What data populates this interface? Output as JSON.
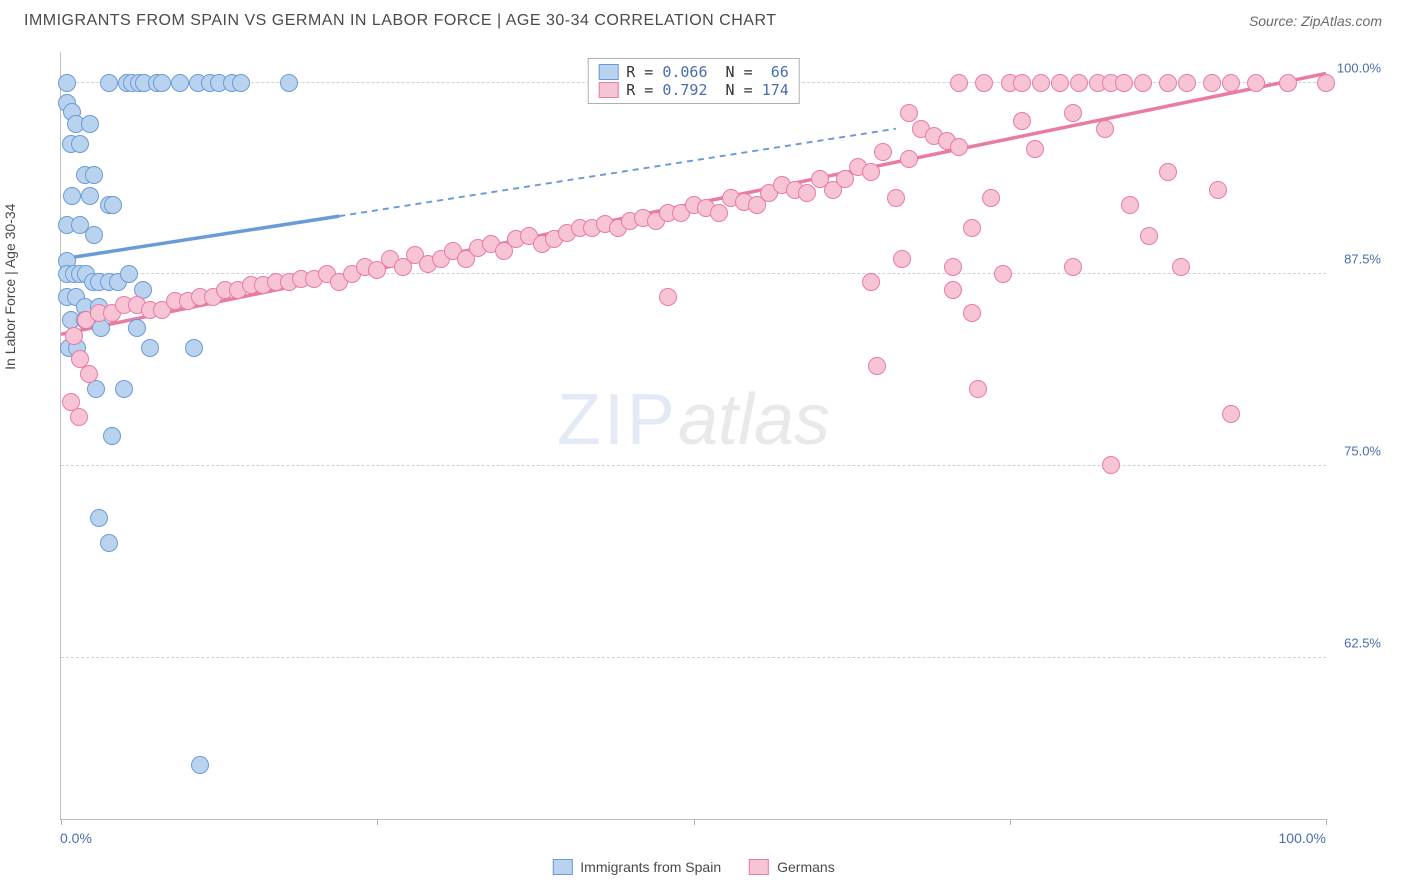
{
  "header": {
    "title": "IMMIGRANTS FROM SPAIN VS GERMAN IN LABOR FORCE | AGE 30-34 CORRELATION CHART",
    "source": "Source: ZipAtlas.com"
  },
  "chart": {
    "type": "scatter",
    "ylabel": "In Labor Force | Age 30-34",
    "watermark_zip": "ZIP",
    "watermark_atlas": "atlas",
    "background_color": "#ffffff",
    "grid_color": "#d0d0d0",
    "axis_color": "#c0c0c0",
    "tick_label_color": "#4a6db0",
    "xlim": [
      0,
      100
    ],
    "ylim": [
      52,
      102
    ],
    "yticks": [
      62.5,
      75.0,
      87.5,
      100.0
    ],
    "ytick_labels": [
      "62.5%",
      "75.0%",
      "87.5%",
      "100.0%"
    ],
    "xtick_positions": [
      0,
      25,
      50,
      75,
      100
    ],
    "xaxis_left_label": "0.0%",
    "xaxis_right_label": "100.0%",
    "marker_radius": 9,
    "marker_fill_opacity": 0.35,
    "marker_stroke_width": 1.5,
    "series": [
      {
        "name": "Immigrants from Spain",
        "label": "Immigrants from Spain",
        "color": "#6a9bd8",
        "fill": "#b9d3ef",
        "R": "0.066",
        "N": "66",
        "trend": {
          "x1": 0,
          "y1": 88.5,
          "x2": 22,
          "y2": 91.3,
          "dash_x2": 66,
          "dash_y2": 97.0,
          "width": 3.5,
          "dash_pattern": "6 5"
        },
        "points": [
          [
            0.5,
            100.0
          ],
          [
            3.8,
            100.0
          ],
          [
            5.2,
            100.0
          ],
          [
            5.6,
            100.0
          ],
          [
            6.2,
            100.0
          ],
          [
            6.6,
            100.0
          ],
          [
            7.6,
            100.0
          ],
          [
            8.0,
            100.0
          ],
          [
            9.4,
            100.0
          ],
          [
            10.8,
            100.0
          ],
          [
            11.8,
            100.0
          ],
          [
            12.5,
            100.0
          ],
          [
            13.5,
            100.0
          ],
          [
            14.2,
            100.0
          ],
          [
            18.0,
            100.0
          ],
          [
            0.5,
            98.7
          ],
          [
            0.9,
            98.1
          ],
          [
            1.2,
            97.3
          ],
          [
            2.3,
            97.3
          ],
          [
            0.8,
            96.0
          ],
          [
            1.5,
            96.0
          ],
          [
            1.9,
            94.0
          ],
          [
            2.6,
            94.0
          ],
          [
            0.9,
            92.6
          ],
          [
            2.3,
            92.6
          ],
          [
            3.8,
            92.0
          ],
          [
            4.1,
            92.0
          ],
          [
            0.5,
            90.7
          ],
          [
            1.5,
            90.7
          ],
          [
            2.6,
            90.1
          ],
          [
            0.5,
            88.4
          ],
          [
            0.5,
            87.5
          ],
          [
            1.0,
            87.5
          ],
          [
            1.5,
            87.5
          ],
          [
            2.0,
            87.5
          ],
          [
            2.5,
            87.0
          ],
          [
            3.0,
            87.0
          ],
          [
            3.8,
            87.0
          ],
          [
            4.5,
            87.0
          ],
          [
            5.4,
            87.5
          ],
          [
            6.5,
            86.5
          ],
          [
            0.5,
            86.0
          ],
          [
            1.2,
            86.0
          ],
          [
            1.9,
            85.4
          ],
          [
            3.0,
            85.4
          ],
          [
            0.8,
            84.5
          ],
          [
            1.9,
            84.5
          ],
          [
            3.2,
            84.0
          ],
          [
            6.0,
            84.0
          ],
          [
            0.6,
            82.7
          ],
          [
            1.3,
            82.7
          ],
          [
            7.0,
            82.7
          ],
          [
            10.5,
            82.7
          ],
          [
            2.8,
            80.0
          ],
          [
            5.0,
            80.0
          ],
          [
            4.0,
            77.0
          ],
          [
            3.0,
            71.6
          ],
          [
            3.8,
            70.0
          ],
          [
            11.0,
            55.5
          ]
        ]
      },
      {
        "name": "Germans",
        "label": "Germans",
        "color": "#e97ba5",
        "fill": "#f7c4d6",
        "R": "0.792",
        "N": "174",
        "trend": {
          "x1": 0,
          "y1": 83.6,
          "x2": 100,
          "y2": 100.6,
          "width": 3.5
        },
        "points": [
          [
            2.0,
            84.5
          ],
          [
            3.0,
            85.0
          ],
          [
            4.0,
            85.0
          ],
          [
            5.0,
            85.5
          ],
          [
            6.0,
            85.5
          ],
          [
            7.0,
            85.2
          ],
          [
            8.0,
            85.2
          ],
          [
            9.0,
            85.8
          ],
          [
            10.0,
            85.8
          ],
          [
            11.0,
            86.0
          ],
          [
            12.0,
            86.0
          ],
          [
            13.0,
            86.5
          ],
          [
            14.0,
            86.5
          ],
          [
            15.0,
            86.8
          ],
          [
            16.0,
            86.8
          ],
          [
            17.0,
            87.0
          ],
          [
            18.0,
            87.0
          ],
          [
            19.0,
            87.2
          ],
          [
            20.0,
            87.2
          ],
          [
            21.0,
            87.5
          ],
          [
            22.0,
            87.0
          ],
          [
            23.0,
            87.5
          ],
          [
            24.0,
            88.0
          ],
          [
            25.0,
            87.8
          ],
          [
            26.0,
            88.5
          ],
          [
            27.0,
            88.0
          ],
          [
            28.0,
            88.8
          ],
          [
            29.0,
            88.2
          ],
          [
            30.0,
            88.5
          ],
          [
            31.0,
            89.0
          ],
          [
            32.0,
            88.5
          ],
          [
            33.0,
            89.2
          ],
          [
            34.0,
            89.5
          ],
          [
            35.0,
            89.0
          ],
          [
            36.0,
            89.8
          ],
          [
            37.0,
            90.0
          ],
          [
            38.0,
            89.5
          ],
          [
            39.0,
            89.8
          ],
          [
            40.0,
            90.2
          ],
          [
            41.0,
            90.5
          ],
          [
            42.0,
            90.5
          ],
          [
            43.0,
            90.8
          ],
          [
            44.0,
            90.5
          ],
          [
            45.0,
            91.0
          ],
          [
            46.0,
            91.2
          ],
          [
            47.0,
            91.0
          ],
          [
            48.0,
            91.5
          ],
          [
            49.0,
            91.5
          ],
          [
            50.0,
            92.0
          ],
          [
            51.0,
            91.8
          ],
          [
            52.0,
            91.5
          ],
          [
            53.0,
            92.5
          ],
          [
            54.0,
            92.2
          ],
          [
            55.0,
            92.0
          ],
          [
            56.0,
            92.8
          ],
          [
            57.0,
            93.3
          ],
          [
            58.0,
            93.0
          ],
          [
            59.0,
            92.8
          ],
          [
            60.0,
            93.7
          ],
          [
            61.0,
            93.0
          ],
          [
            62.0,
            93.7
          ],
          [
            63.0,
            94.5
          ],
          [
            64.0,
            94.2
          ],
          [
            65.0,
            95.5
          ],
          [
            66.0,
            92.5
          ],
          [
            67.0,
            95.0
          ],
          [
            68.0,
            97.0
          ],
          [
            69.0,
            96.5
          ],
          [
            70.0,
            96.2
          ],
          [
            71.0,
            95.8
          ],
          [
            48.0,
            86.0
          ],
          [
            64.0,
            87.0
          ],
          [
            66.5,
            88.5
          ],
          [
            70.5,
            88.0
          ],
          [
            72.0,
            90.5
          ],
          [
            73.5,
            92.5
          ],
          [
            74.5,
            87.5
          ],
          [
            64.5,
            81.5
          ],
          [
            71.0,
            100.0
          ],
          [
            73.0,
            100.0
          ],
          [
            75.0,
            100.0
          ],
          [
            76.0,
            100.0
          ],
          [
            77.5,
            100.0
          ],
          [
            79.0,
            100.0
          ],
          [
            80.5,
            100.0
          ],
          [
            82.0,
            100.0
          ],
          [
            83.0,
            100.0
          ],
          [
            84.0,
            100.0
          ],
          [
            85.5,
            100.0
          ],
          [
            87.5,
            100.0
          ],
          [
            89.0,
            100.0
          ],
          [
            91.0,
            100.0
          ],
          [
            92.5,
            100.0
          ],
          [
            94.5,
            100.0
          ],
          [
            97.0,
            100.0
          ],
          [
            100.0,
            100.0
          ],
          [
            67.0,
            98.0
          ],
          [
            76.0,
            97.5
          ],
          [
            77.0,
            95.7
          ],
          [
            80.0,
            98.0
          ],
          [
            82.5,
            97.0
          ],
          [
            84.5,
            92.0
          ],
          [
            87.5,
            94.2
          ],
          [
            91.5,
            93.0
          ],
          [
            70.5,
            86.5
          ],
          [
            72.0,
            85.0
          ],
          [
            72.5,
            80.0
          ],
          [
            80.0,
            88.0
          ],
          [
            86.0,
            90.0
          ],
          [
            88.5,
            88.0
          ],
          [
            83.0,
            75.1
          ],
          [
            92.5,
            78.4
          ],
          [
            1.0,
            83.5
          ],
          [
            1.5,
            82.0
          ],
          [
            2.2,
            81.0
          ],
          [
            0.8,
            79.2
          ],
          [
            1.4,
            78.2
          ]
        ]
      }
    ]
  }
}
